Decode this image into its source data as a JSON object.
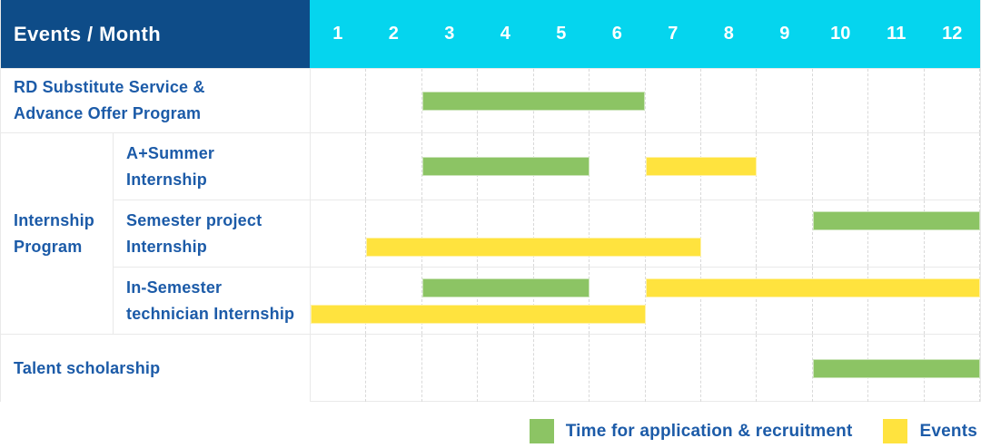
{
  "header": {
    "title": "Events / Month",
    "months": [
      "1",
      "2",
      "3",
      "4",
      "5",
      "6",
      "7",
      "8",
      "9",
      "10",
      "11",
      "12"
    ]
  },
  "legend": {
    "items": [
      {
        "key": "application",
        "label": "Time for application & recruitment"
      },
      {
        "key": "event",
        "label": "Events"
      }
    ]
  },
  "colors": {
    "header_navy": "#0e4c88",
    "header_cyan": "#05d5ee",
    "application_green": "#8cc464",
    "event_yellow": "#ffe33e",
    "label_blue": "#1c5ba8",
    "grid_line": "#e9e9e9"
  },
  "chart_data": {
    "type": "bar",
    "subtype": "gantt",
    "title": "Events / Month",
    "x_categories": [
      "1",
      "2",
      "3",
      "4",
      "5",
      "6",
      "7",
      "8",
      "9",
      "10",
      "11",
      "12"
    ],
    "x_range": [
      1,
      12
    ],
    "grid": true,
    "legend_position": "bottom-right",
    "legend": [
      "Time for application & recruitment",
      "Events"
    ],
    "groups": [
      {
        "group_label": "RD Substitute Service & Advance Offer Program",
        "group_label_lines": [
          "RD Substitute Service &",
          "Advance Offer Program"
        ],
        "rows": [
          {
            "sub_label": null,
            "sub_label_lines": null,
            "two_line": false,
            "bars": [
              {
                "kind": "application",
                "line": 0,
                "start_month": 3,
                "end_month": 6
              }
            ]
          }
        ]
      },
      {
        "group_label": "Internship Program",
        "group_label_lines": [
          "Internship",
          "Program"
        ],
        "rows": [
          {
            "sub_label": "A+Summer Internship",
            "sub_label_lines": [
              "A+Summer",
              "Internship"
            ],
            "two_line": false,
            "bars": [
              {
                "kind": "application",
                "line": 0,
                "start_month": 3,
                "end_month": 5
              },
              {
                "kind": "event",
                "line": 0,
                "start_month": 7,
                "end_month": 8
              }
            ]
          },
          {
            "sub_label": "Semester project Internship",
            "sub_label_lines": [
              "Semester project",
              "Internship"
            ],
            "two_line": true,
            "bars": [
              {
                "kind": "application",
                "line": 0,
                "start_month": 10,
                "end_month": 12
              },
              {
                "kind": "event",
                "line": 1,
                "start_month": 2,
                "end_month": 7
              }
            ]
          },
          {
            "sub_label": "In-Semester technician Internship",
            "sub_label_lines": [
              "In-Semester",
              "technician Internship"
            ],
            "two_line": true,
            "bars": [
              {
                "kind": "application",
                "line": 0,
                "start_month": 3,
                "end_month": 5
              },
              {
                "kind": "event",
                "line": 0,
                "start_month": 7,
                "end_month": 12
              },
              {
                "kind": "event",
                "line": 1,
                "start_month": 1,
                "end_month": 6
              }
            ]
          }
        ]
      },
      {
        "group_label": "Talent scholarship",
        "group_label_lines": [
          "Talent scholarship"
        ],
        "rows": [
          {
            "sub_label": null,
            "sub_label_lines": null,
            "two_line": false,
            "bars": [
              {
                "kind": "application",
                "line": 0,
                "start_month": 10,
                "end_month": 12
              }
            ]
          }
        ]
      }
    ]
  }
}
